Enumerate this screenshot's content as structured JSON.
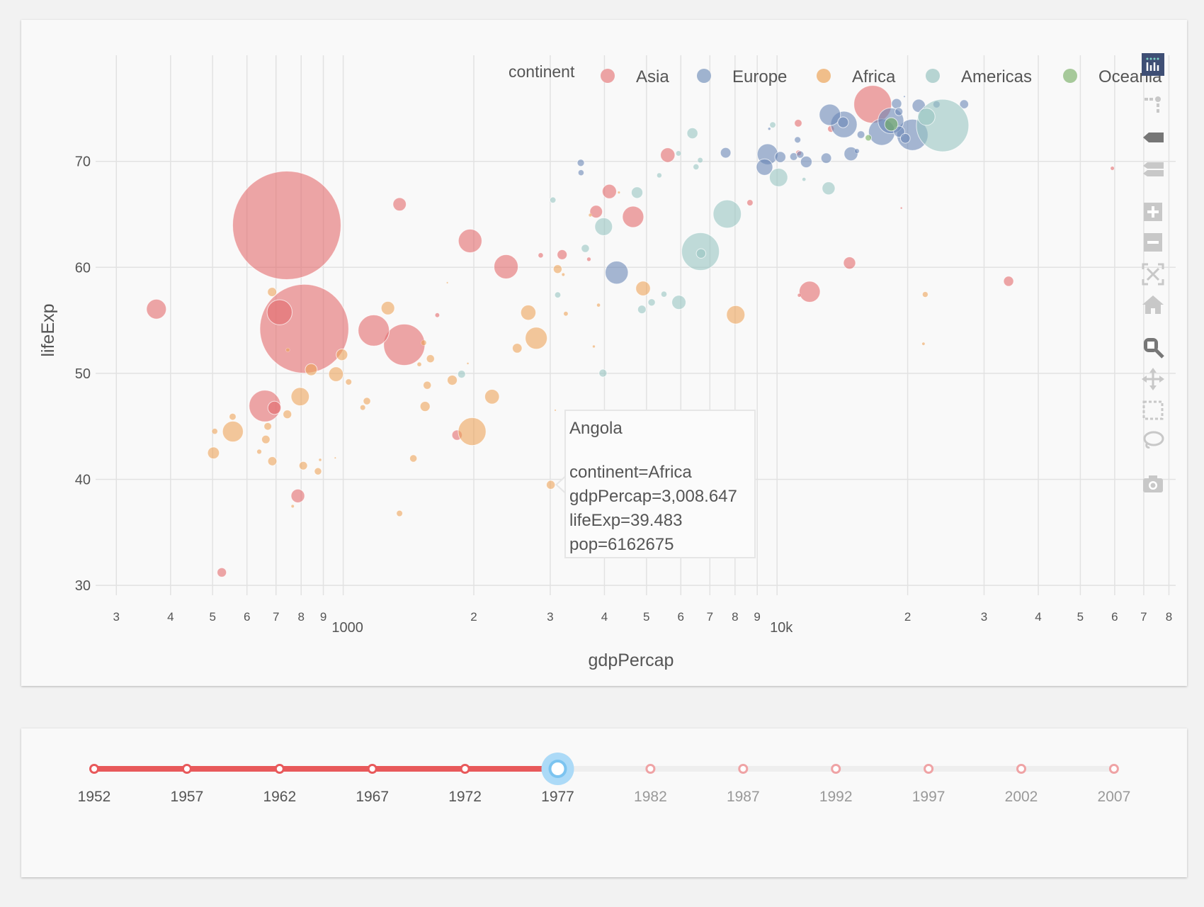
{
  "chart_data": {
    "type": "scatter",
    "xlabel": "gdpPercap",
    "ylabel": "lifeExp",
    "xscale": "log",
    "xlim": [
      268,
      82600
    ],
    "ylim": [
      29.1,
      80
    ],
    "grid": true,
    "legend": {
      "title": "continent",
      "placement": "top-right",
      "orientation": "horizontal"
    },
    "size_field": "pop",
    "x_ticks": [
      {
        "value": 300,
        "label": "3"
      },
      {
        "value": 400,
        "label": "4"
      },
      {
        "value": 500,
        "label": "5"
      },
      {
        "value": 600,
        "label": "6"
      },
      {
        "value": 700,
        "label": "7"
      },
      {
        "value": 800,
        "label": "8"
      },
      {
        "value": 900,
        "label": "9"
      },
      {
        "value": 1000,
        "label": "1000",
        "major": true
      },
      {
        "value": 2000,
        "label": "2"
      },
      {
        "value": 3000,
        "label": "3"
      },
      {
        "value": 4000,
        "label": "4"
      },
      {
        "value": 5000,
        "label": "5"
      },
      {
        "value": 6000,
        "label": "6"
      },
      {
        "value": 7000,
        "label": "7"
      },
      {
        "value": 8000,
        "label": "8"
      },
      {
        "value": 9000,
        "label": "9"
      },
      {
        "value": 10000,
        "label": "10k",
        "major": true
      },
      {
        "value": 20000,
        "label": "2"
      },
      {
        "value": 30000,
        "label": "3"
      },
      {
        "value": 40000,
        "label": "4"
      },
      {
        "value": 50000,
        "label": "5"
      },
      {
        "value": 60000,
        "label": "6"
      },
      {
        "value": 70000,
        "label": "7"
      },
      {
        "value": 80000,
        "label": "8"
      }
    ],
    "y_ticks": [
      {
        "value": 30,
        "label": "30"
      },
      {
        "value": 40,
        "label": "40"
      },
      {
        "value": 50,
        "label": "50"
      },
      {
        "value": 60,
        "label": "60"
      },
      {
        "value": 70,
        "label": "70"
      }
    ],
    "point_fields": [
      "gdpPercap",
      "lifeExp",
      "pop"
    ],
    "series": [
      {
        "name": "Asia",
        "color": "#e36a6d",
        "legend_color": "#eca3a4",
        "points": [
          [
            741.24,
            63.967,
            943455000
          ],
          [
            813.34,
            54.208,
            634000000
          ],
          [
            1382.7,
            52.702,
            136725000
          ],
          [
            16610.38,
            75.38,
            113872473
          ],
          [
            659.88,
            46.923,
            80428306
          ],
          [
            1175.92,
            54.043,
            78152686
          ],
          [
            713.54,
            55.764,
            50533506
          ],
          [
            2373.2,
            60.06,
            46850962
          ],
          [
            1961.22,
            62.494,
            44583000
          ],
          [
            4657.22,
            64.766,
            36436000
          ],
          [
            11888.6,
            57.702,
            35480679
          ],
          [
            371.0,
            56.059,
            31528087
          ],
          [
            5596.52,
            70.59,
            16785196
          ],
          [
            4106.3,
            67.159,
            16325320
          ],
          [
            786.11,
            38.438,
            14880372
          ],
          [
            1348.78,
            65.949,
            14116836
          ],
          [
            694.17,
            46.748,
            13933198
          ],
          [
            3827.92,
            65.256,
            12845381
          ],
          [
            14688.24,
            60.413,
            11882916
          ],
          [
            1829.77,
            44.175,
            8403990
          ],
          [
            34167.76,
            58.69,
            8128505
          ],
          [
            3195.48,
            61.195,
            7932503
          ],
          [
            524.97,
            31.22,
            6978607
          ],
          [
            11186.14,
            73.6,
            4583700
          ],
          [
            13306.62,
            73.06,
            3495918
          ],
          [
            8659.7,
            66.099,
            3115787
          ],
          [
            11210.09,
            70.795,
            2325300
          ],
          [
            2852.35,
            61.134,
            1937652
          ],
          [
            1647.51,
            55.491,
            1528000
          ],
          [
            3682.83,
            60.765,
            1261091
          ],
          [
            59265.48,
            69.343,
            1140357
          ],
          [
            11253.23,
            57.367,
            1004533
          ],
          [
            19340.1,
            65.593,
            297410
          ]
        ]
      },
      {
        "name": "Europe",
        "color": "#6b87b5",
        "legend_color": "#9fb3cf",
        "points": [
          [
            4269.12,
            59.507,
            42404033
          ],
          [
            20512.92,
            72.5,
            78160773
          ],
          [
            14255.98,
            73.48,
            56059245
          ],
          [
            17428.75,
            72.76,
            56179000
          ],
          [
            18292.64,
            73.83,
            53165019
          ],
          [
            13236.92,
            74.39,
            36439000
          ],
          [
            9508.14,
            70.67,
            34621254
          ],
          [
            9356.4,
            69.46,
            21658597
          ],
          [
            14800.16,
            70.71,
            15283050
          ],
          [
            21209.06,
            75.24,
            13852989
          ],
          [
            11674.84,
            69.95,
            10637171
          ],
          [
            10172.49,
            70.41,
            9662600
          ],
          [
            19117.97,
            72.8,
            9821800
          ],
          [
            14195.52,
            73.68,
            9308479
          ],
          [
            7612.24,
            70.81,
            8797022
          ],
          [
            18855.73,
            75.44,
            8251648
          ],
          [
            19749.42,
            72.17,
            7568430
          ],
          [
            26982.29,
            75.39,
            6316424
          ],
          [
            19084.72,
            74.69,
            5088419
          ],
          [
            15605.42,
            72.52,
            4738902
          ],
          [
            23311.35,
            75.37,
            4043205
          ],
          [
            11150.98,
            72.03,
            3271900
          ],
          [
            3533.0,
            68.93,
            2509048
          ],
          [
            3528.48,
            69.86,
            4086000
          ],
          [
            11305.39,
            70.64,
            4318673
          ],
          [
            12980.67,
            70.3,
            8686367
          ],
          [
            10922.66,
            70.45,
            4827803
          ],
          [
            15277.03,
            70.97,
            1746919
          ],
          [
            9595.93,
            73.07,
            560073
          ],
          [
            19654.96,
            76.11,
            221823
          ]
        ]
      },
      {
        "name": "Africa",
        "color": "#eca35a",
        "legend_color": "#f0be8a",
        "points": [
          [
            1981.95,
            44.514,
            62209173
          ],
          [
            2785.49,
            53.319,
            38783863
          ],
          [
            556.81,
            44.51,
            34617799
          ],
          [
            8028.65,
            55.527,
            27129932
          ],
          [
            795.76,
            47.804,
            26480870
          ],
          [
            2670.64,
            55.73,
            18396941
          ],
          [
            4910.42,
            58.014,
            17152804
          ],
          [
            2202.99,
            47.8,
            17104986
          ],
          [
            962.49,
            49.919,
            17129565
          ],
          [
            1267.61,
            56.155,
            14500404
          ],
          [
            843.73,
            50.35,
            11457758
          ],
          [
            502.32,
            42.495,
            11127868
          ],
          [
            993.22,
            51.756,
            10538093
          ],
          [
            1544.23,
            46.881,
            8007166
          ],
          [
            1783.43,
            49.355,
            7959865
          ],
          [
            2517.74,
            52.374,
            7459574
          ],
          [
            3008.65,
            39.483,
            6162675
          ],
          [
            3120.88,
            59.837,
            6005061
          ],
          [
            686.4,
            41.714,
            6491649
          ],
          [
            663.22,
            43.767,
            5637246
          ],
          [
            685.59,
            57.674,
            6642107
          ],
          [
            743.39,
            46.137,
            5889574
          ],
          [
            808.9,
            41.291,
            5682086
          ],
          [
            1588.69,
            51.386,
            5216550
          ],
          [
            1561.77,
            48.879,
            5260855
          ],
          [
            670.08,
            45.0,
            4657072
          ],
          [
            1450.99,
            41.974,
            4353666
          ],
          [
            874.69,
            40.762,
            4227026
          ],
          [
            1133.98,
            47.383,
            4388260
          ],
          [
            556.1,
            45.91,
            3834415
          ],
          [
            1029.16,
            49.19,
            3168267
          ],
          [
            1348.29,
            36.788,
            3140897
          ],
          [
            21951.21,
            57.442,
            2721783
          ],
          [
            1532.78,
            52.887,
            2308582
          ],
          [
            1109.37,
            46.775,
            2167533
          ],
          [
            640.32,
            42.614,
            1703617
          ],
          [
            1497.49,
            50.852,
            1456688
          ],
          [
            745.37,
            52.208,
            1251524
          ],
          [
            3259.18,
            55.625,
            1536769
          ],
          [
            3876.49,
            56.437,
            977026
          ],
          [
            3214.86,
            59.319,
            781472
          ],
          [
            884.76,
            41.842,
            608274
          ],
          [
            764.73,
            37.465,
            745228
          ],
          [
            21745.57,
            52.79,
            706367
          ],
          [
            3710.98,
            64.93,
            913025
          ],
          [
            3781.41,
            52.537,
            551425
          ],
          [
            958.57,
            42.024,
            192675
          ],
          [
            3081.76,
            46.519,
            228694
          ],
          [
            1937.58,
            50.939,
            304739
          ],
          [
            4319.8,
            67.064,
            492095
          ],
          [
            1737.56,
            58.55,
            86796
          ],
          [
            505.75,
            44.535,
            2512642
          ]
        ]
      },
      {
        "name": "Americas",
        "color": "#98c4c2",
        "legend_color": "#b6d4d2",
        "points": [
          [
            24072.63,
            73.38,
            220239000
          ],
          [
            6660.12,
            61.489,
            114313951
          ],
          [
            7674.93,
            65.032,
            63759976
          ],
          [
            10079.03,
            68.481,
            26983828
          ],
          [
            3982.89,
            63.837,
            25094412
          ],
          [
            22090.88,
            74.21,
            23796400
          ],
          [
            5937.83,
            56.696,
            15990099
          ],
          [
            13143.95,
            67.456,
            13503563
          ],
          [
            4756.53,
            67.052,
            10599793
          ],
          [
            6380.49,
            72.649,
            9537988
          ],
          [
            6679.62,
            61.31,
            7278866
          ],
          [
            4879.99,
            56.029,
            5703430
          ],
          [
            3968.83,
            50.023,
            5079716
          ],
          [
            3614.1,
            61.788,
            5302800
          ],
          [
            1874.3,
            49.923,
            4908554
          ],
          [
            5138.92,
            56.696,
            4282586
          ],
          [
            3121.81,
            57.402,
            3055235
          ],
          [
            3043.1,
            66.353,
            2984494
          ],
          [
            5486.37,
            57.47,
            2554598
          ],
          [
            9770.52,
            73.44,
            3080828
          ],
          [
            6650.2,
            70.11,
            2156814
          ],
          [
            6504.34,
            69.48,
            2873520
          ],
          [
            5926.88,
            70.75,
            2108457
          ],
          [
            5351.91,
            68.68,
            1839782
          ],
          [
            11536.08,
            68.3,
            1039009
          ]
        ]
      },
      {
        "name": "Oceania",
        "color": "#6fac5d",
        "legend_color": "#a6c99a",
        "points": [
          [
            18334.2,
            73.49,
            14074100
          ],
          [
            16233.72,
            72.22,
            3164900
          ]
        ]
      }
    ]
  },
  "hover": {
    "title": "Angola",
    "lines": [
      "continent=Africa",
      "gdpPercap=3,008.647",
      "lifeExp=39.483",
      "pop=6162675"
    ]
  },
  "modebar": {
    "logo": "plotly-logo-icon",
    "buttons": [
      "toggle-spikelines-icon",
      "hover-closest-icon",
      "hover-compare-icon",
      "zoom-in-icon",
      "zoom-out-icon",
      "autoscale-icon",
      "reset-axes-icon",
      "zoom-icon",
      "pan-icon",
      "box-select-icon",
      "lasso-select-icon",
      "camera-icon"
    ],
    "active": "zoom-icon"
  },
  "slider": {
    "steps": [
      "1952",
      "1957",
      "1962",
      "1967",
      "1972",
      "1977",
      "1982",
      "1987",
      "1992",
      "1997",
      "2002",
      "2007"
    ],
    "active_index": 5,
    "active_color": "#e8595b",
    "handle_color": "#7cc4f0"
  }
}
